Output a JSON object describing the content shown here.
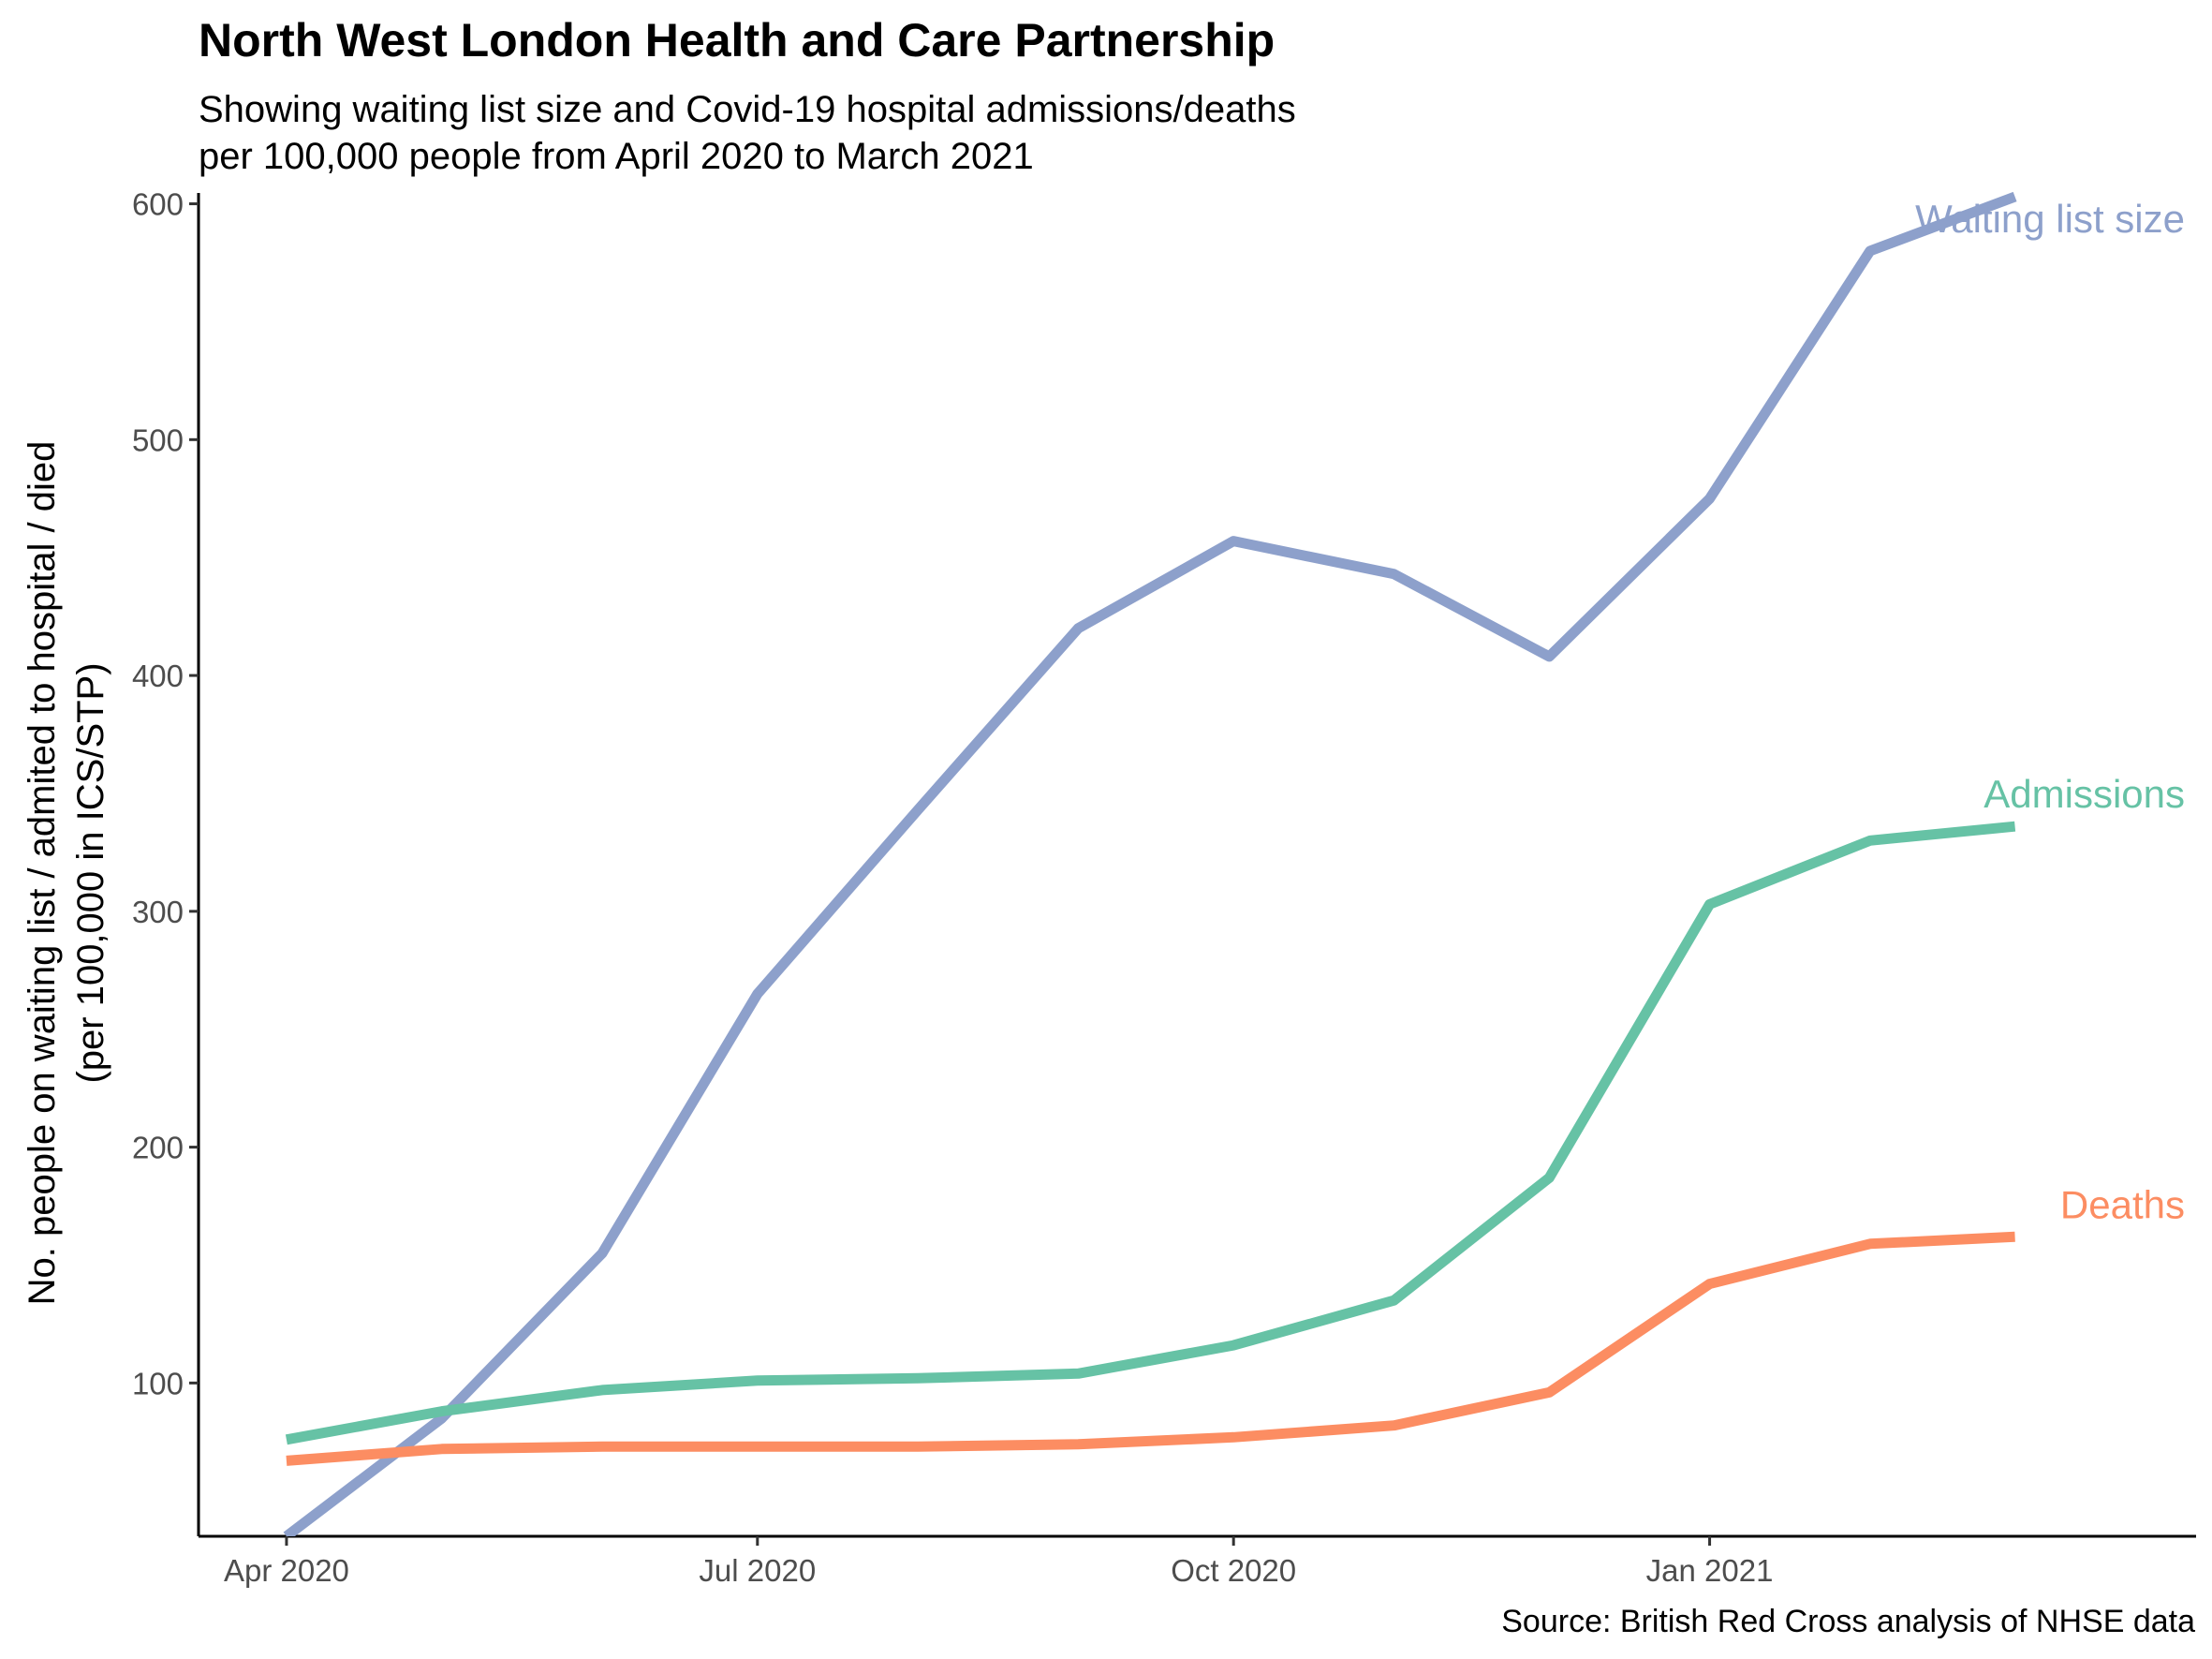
{
  "chart_data": {
    "type": "line",
    "title": "North West London Health and Care Partnership",
    "subtitle": [
      "Showing waiting list size and Covid-19 hospital admissions/deaths",
      "per 100,000 people from April 2020 to March 2021"
    ],
    "xlabel": "",
    "ylabel": [
      "No. people on waiting list / admited to hospital / died",
      "(per 100,000 in ICS/STP)"
    ],
    "caption": "Source: British Red Cross analysis of NHSE data",
    "x": [
      "2020-04-01",
      "2020-05-01",
      "2020-06-01",
      "2020-07-01",
      "2020-08-01",
      "2020-09-01",
      "2020-10-01",
      "2020-11-01",
      "2020-12-01",
      "2021-01-01",
      "2021-02-01",
      "2021-03-01"
    ],
    "xlim": [
      "2020-03-15",
      "2021-04-05"
    ],
    "ylim": [
      35,
      603
    ],
    "x_ticks": [
      {
        "date": "2020-04-01",
        "label": "Apr 2020"
      },
      {
        "date": "2020-07-01",
        "label": "Jul 2020"
      },
      {
        "date": "2020-10-01",
        "label": "Oct 2020"
      },
      {
        "date": "2021-01-01",
        "label": "Jan 2021"
      }
    ],
    "y_ticks": [
      100,
      200,
      300,
      400,
      500,
      600
    ],
    "grid": false,
    "legend": "none",
    "series": [
      {
        "name": "Waiting list size",
        "color": "#8da0cb",
        "values": [
          35,
          85,
          155,
          265,
          343,
          420,
          457,
          443,
          408,
          475,
          580,
          603
        ]
      },
      {
        "name": "Admissions",
        "color": "#66c2a5",
        "values": [
          76,
          88,
          97,
          101,
          102,
          104,
          116,
          135,
          187,
          303,
          330,
          336
        ]
      },
      {
        "name": "Deaths",
        "color": "#fc8d62",
        "values": [
          67,
          72,
          73,
          73,
          73,
          74,
          77,
          82,
          96,
          142,
          159,
          162
        ]
      }
    ]
  }
}
